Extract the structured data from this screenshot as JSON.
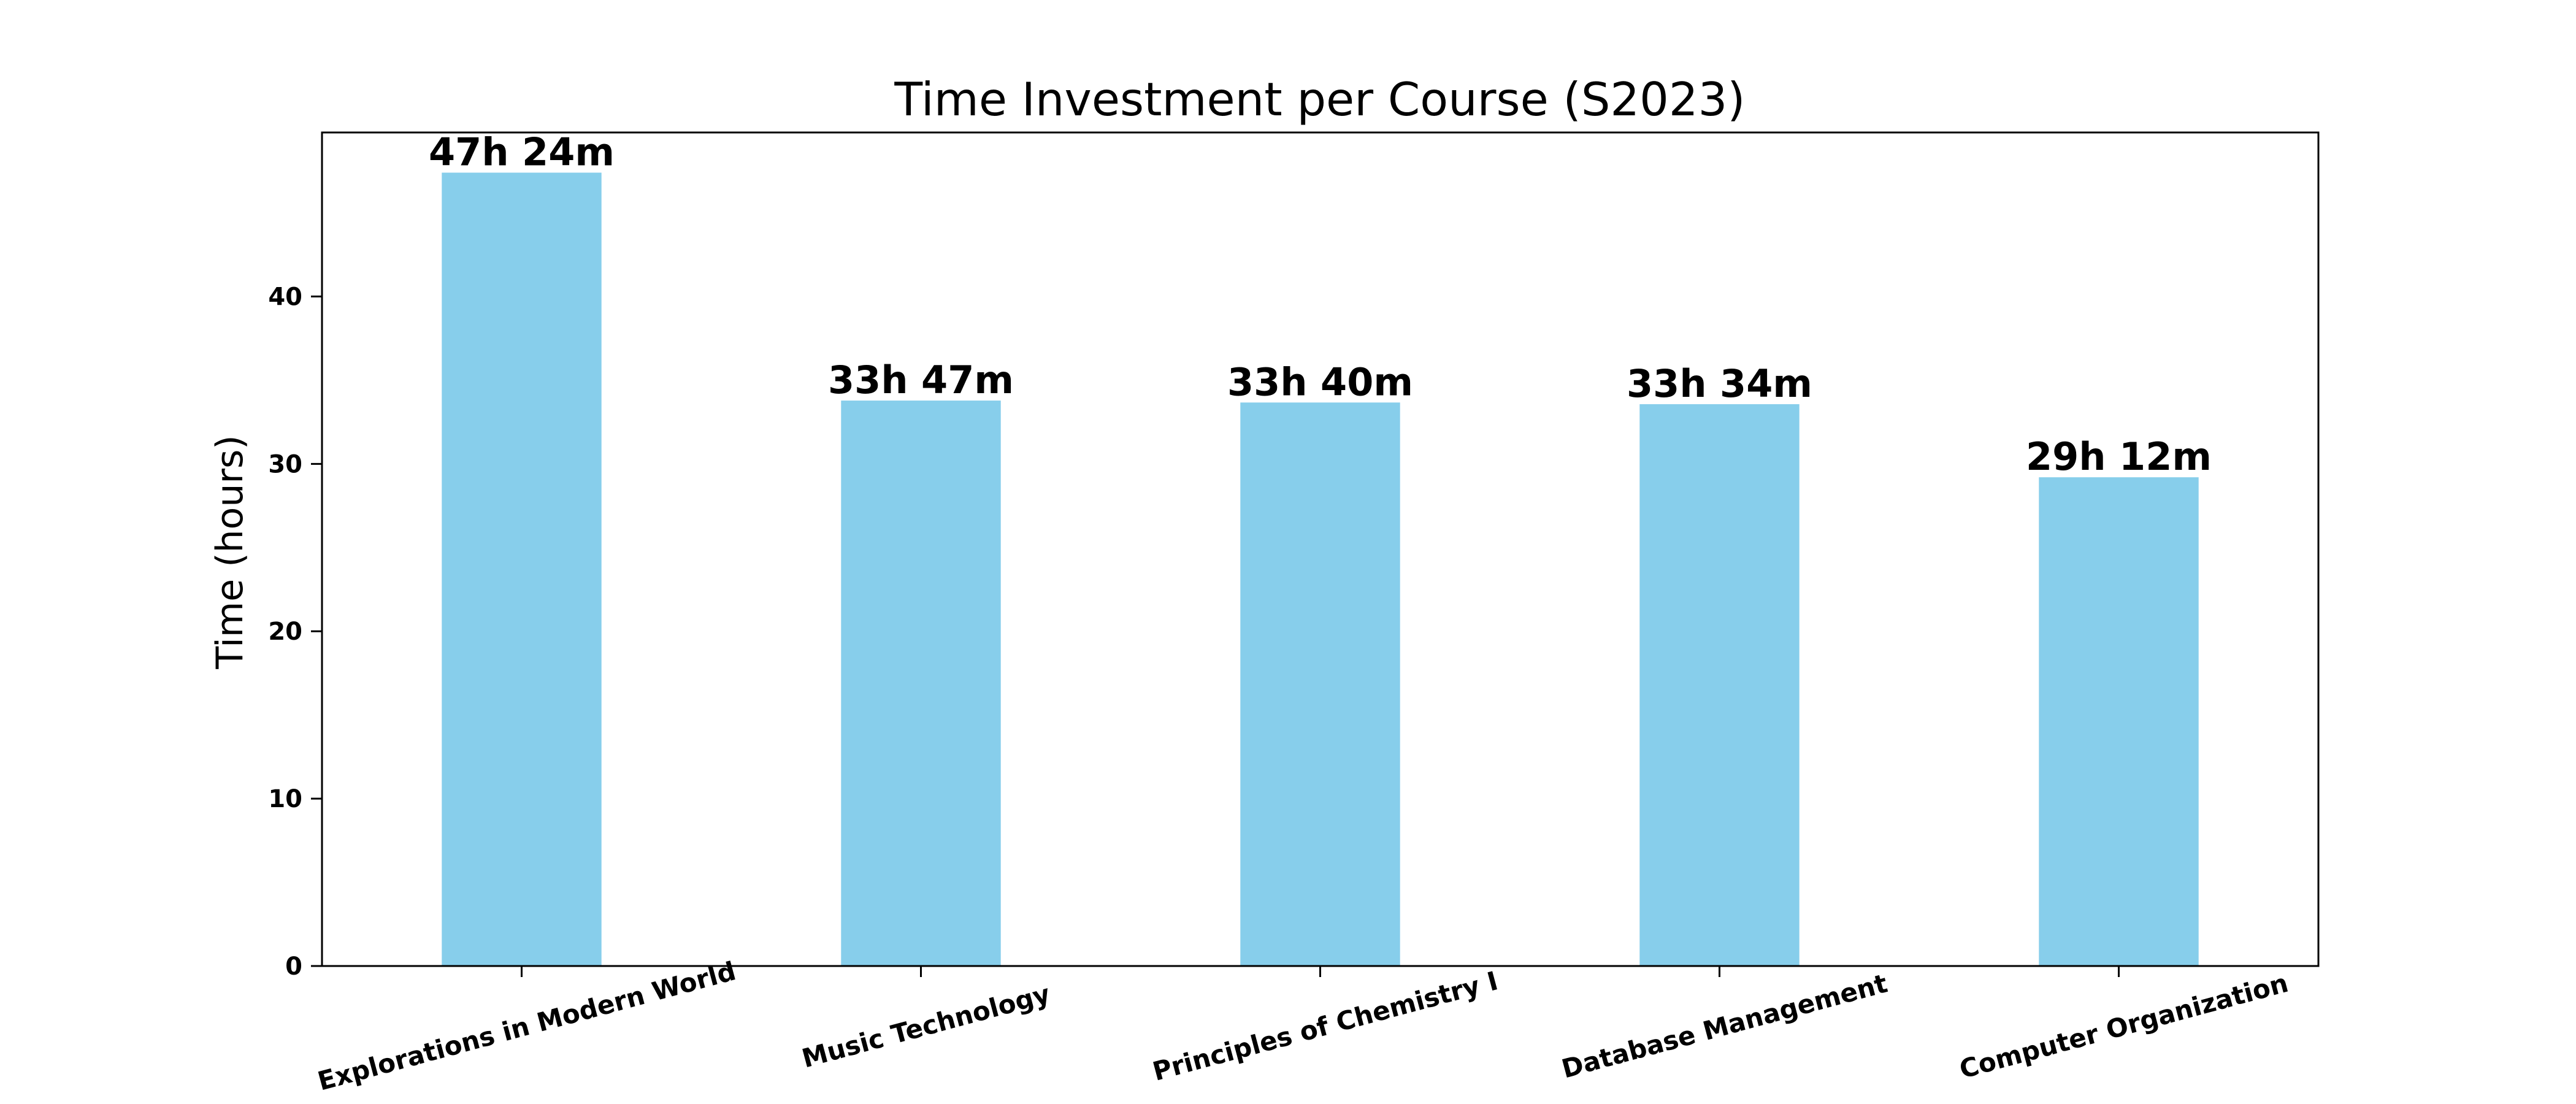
{
  "chart_data": {
    "type": "bar",
    "title": "Time Investment per Course (S2023)",
    "xlabel": "",
    "ylabel": "Time (hours)",
    "categories": [
      "Explorations in Modern World",
      "Music Technology",
      "Principles of Chemistry I",
      "Database Management",
      "Computer Organization"
    ],
    "values": [
      47.4,
      33.783,
      33.667,
      33.567,
      29.2
    ],
    "data_labels": [
      "47h 24m",
      "33h 47m",
      "33h 40m",
      "33h 34m",
      "29h 12m"
    ],
    "ylim": [
      0,
      49.8
    ],
    "yticks": [
      0,
      10,
      20,
      30,
      40
    ],
    "grid": false,
    "legend": "none",
    "bar_color": "#87CEEB"
  }
}
